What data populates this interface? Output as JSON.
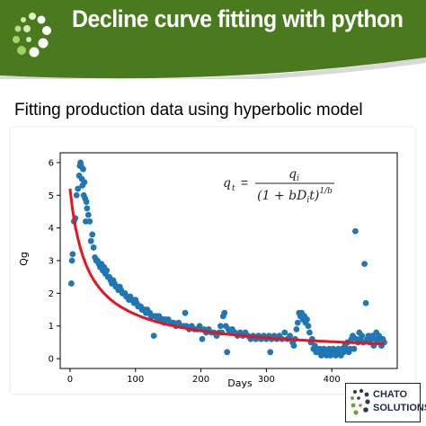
{
  "header": {
    "title": "Decline curve fitting with python",
    "bg_color": "#4a7a1e",
    "logo_icon": "dot-spiral-logo-icon"
  },
  "subtitle": "Fitting production data using hyperbolic model",
  "logo": {
    "line1": "CHATO",
    "line2": "SOLUTIONS",
    "icon": "dot-spiral-logo-icon"
  },
  "chart_data": {
    "type": "scatter",
    "title": "",
    "xlabel": "Days",
    "ylabel": "Qg",
    "xlim": [
      -15,
      500
    ],
    "ylim": [
      -0.3,
      6.3
    ],
    "xticks": [
      0,
      100,
      200,
      300,
      400
    ],
    "yticks": [
      0,
      1,
      2,
      3,
      4,
      5,
      6
    ],
    "grid": false,
    "legend": "none",
    "annotation": "q_t = q_i / (1 + bD_i t)^(1/b)",
    "series": [
      {
        "type": "scatter",
        "color": "#1f77b4",
        "points": [
          [
            2,
            2.3
          ],
          [
            3,
            3.0
          ],
          [
            4,
            3.2
          ],
          [
            6,
            4.2
          ],
          [
            8,
            4.3
          ],
          [
            10,
            5.0
          ],
          [
            12,
            5.2
          ],
          [
            14,
            5.6
          ],
          [
            15,
            5.9
          ],
          [
            16,
            6.0
          ],
          [
            17,
            5.9
          ],
          [
            18,
            5.5
          ],
          [
            19,
            5.3
          ],
          [
            20,
            5.8
          ],
          [
            21,
            5.0
          ],
          [
            22,
            5.4
          ],
          [
            23,
            4.9
          ],
          [
            24,
            4.2
          ],
          [
            25,
            4.8
          ],
          [
            26,
            4.6
          ],
          [
            28,
            4.4
          ],
          [
            30,
            4.2
          ],
          [
            32,
            3.6
          ],
          [
            34,
            3.8
          ],
          [
            36,
            3.4
          ],
          [
            38,
            3.1
          ],
          [
            40,
            3.0
          ],
          [
            42,
            3.0
          ],
          [
            44,
            2.9
          ],
          [
            46,
            2.8
          ],
          [
            48,
            2.9
          ],
          [
            50,
            2.7
          ],
          [
            52,
            2.8
          ],
          [
            54,
            2.6
          ],
          [
            56,
            2.7
          ],
          [
            58,
            2.5
          ],
          [
            60,
            2.5
          ],
          [
            62,
            2.4
          ],
          [
            64,
            2.3
          ],
          [
            66,
            2.4
          ],
          [
            68,
            2.3
          ],
          [
            70,
            2.2
          ],
          [
            72,
            2.2
          ],
          [
            74,
            2.1
          ],
          [
            76,
            2.2
          ],
          [
            78,
            2.1
          ],
          [
            80,
            2.0
          ],
          [
            82,
            2.0
          ],
          [
            84,
            2.0
          ],
          [
            86,
            1.9
          ],
          [
            88,
            1.9
          ],
          [
            90,
            1.8
          ],
          [
            92,
            1.9
          ],
          [
            94,
            1.8
          ],
          [
            96,
            1.8
          ],
          [
            98,
            1.7
          ],
          [
            100,
            1.8
          ],
          [
            102,
            1.7
          ],
          [
            104,
            1.6
          ],
          [
            106,
            1.6
          ],
          [
            108,
            1.6
          ],
          [
            110,
            1.5
          ],
          [
            112,
            1.5
          ],
          [
            114,
            1.5
          ],
          [
            116,
            1.4
          ],
          [
            118,
            1.5
          ],
          [
            120,
            1.4
          ],
          [
            122,
            1.4
          ],
          [
            124,
            1.3
          ],
          [
            126,
            1.3
          ],
          [
            128,
            0.7
          ],
          [
            130,
            1.3
          ],
          [
            132,
            1.3
          ],
          [
            134,
            1.2
          ],
          [
            136,
            1.3
          ],
          [
            138,
            1.2
          ],
          [
            140,
            1.2
          ],
          [
            142,
            1.2
          ],
          [
            144,
            1.1
          ],
          [
            146,
            1.2
          ],
          [
            150,
            1.2
          ],
          [
            154,
            1.1
          ],
          [
            158,
            1.1
          ],
          [
            162,
            1.0
          ],
          [
            166,
            1.1
          ],
          [
            170,
            1.0
          ],
          [
            174,
            1.0
          ],
          [
            176,
            1.4
          ],
          [
            178,
            1.0
          ],
          [
            182,
            0.9
          ],
          [
            186,
            1.0
          ],
          [
            190,
            0.9
          ],
          [
            194,
            0.9
          ],
          [
            198,
            1.0
          ],
          [
            200,
            0.9
          ],
          [
            202,
            0.6
          ],
          [
            205,
            0.9
          ],
          [
            208,
            0.8
          ],
          [
            212,
            0.9
          ],
          [
            216,
            0.8
          ],
          [
            220,
            0.8
          ],
          [
            224,
            0.7
          ],
          [
            228,
            0.8
          ],
          [
            230,
            1.0
          ],
          [
            232,
            0.8
          ],
          [
            234,
            1.3
          ],
          [
            236,
            1.4
          ],
          [
            238,
            1.0
          ],
          [
            240,
            0.2
          ],
          [
            242,
            0.9
          ],
          [
            244,
            0.8
          ],
          [
            248,
            0.9
          ],
          [
            252,
            0.8
          ],
          [
            256,
            0.7
          ],
          [
            260,
            0.8
          ],
          [
            264,
            0.7
          ],
          [
            268,
            0.8
          ],
          [
            272,
            0.7
          ],
          [
            276,
            0.6
          ],
          [
            280,
            0.7
          ],
          [
            284,
            0.6
          ],
          [
            288,
            0.7
          ],
          [
            292,
            0.6
          ],
          [
            296,
            0.7
          ],
          [
            300,
            0.6
          ],
          [
            304,
            0.7
          ],
          [
            306,
            0.2
          ],
          [
            308,
            0.6
          ],
          [
            312,
            0.7
          ],
          [
            316,
            0.6
          ],
          [
            320,
            0.7
          ],
          [
            324,
            0.6
          ],
          [
            328,
            0.8
          ],
          [
            332,
            0.6
          ],
          [
            336,
            0.7
          ],
          [
            340,
            0.5
          ],
          [
            342,
            0.4
          ],
          [
            344,
            0.6
          ],
          [
            346,
            0.9
          ],
          [
            348,
            1.1
          ],
          [
            350,
            1.4
          ],
          [
            352,
            1.3
          ],
          [
            354,
            1.4
          ],
          [
            356,
            1.2
          ],
          [
            358,
            1.3
          ],
          [
            360,
            1.1
          ],
          [
            362,
            1.2
          ],
          [
            364,
            1.0
          ],
          [
            366,
            0.8
          ],
          [
            368,
            0.5
          ],
          [
            370,
            0.6
          ],
          [
            372,
            0.3
          ],
          [
            374,
            0.4
          ],
          [
            376,
            0.2
          ],
          [
            378,
            0.3
          ],
          [
            380,
            0.2
          ],
          [
            382,
            0.3
          ],
          [
            384,
            0.1
          ],
          [
            386,
            0.2
          ],
          [
            388,
            0.3
          ],
          [
            390,
            0.2
          ],
          [
            392,
            0.1
          ],
          [
            394,
            0.2
          ],
          [
            396,
            0.3
          ],
          [
            398,
            0.1
          ],
          [
            400,
            0.2
          ],
          [
            402,
            0.3
          ],
          [
            404,
            0.2
          ],
          [
            406,
            0.1
          ],
          [
            408,
            0.2
          ],
          [
            410,
            0.3
          ],
          [
            412,
            0.2
          ],
          [
            414,
            0.1
          ],
          [
            416,
            0.3
          ],
          [
            418,
            0.2
          ],
          [
            420,
            0.4
          ],
          [
            422,
            0.3
          ],
          [
            424,
            0.5
          ],
          [
            426,
            0.2
          ],
          [
            428,
            0.3
          ],
          [
            430,
            0.6
          ],
          [
            432,
            0.7
          ],
          [
            434,
            0.3
          ],
          [
            436,
            3.9
          ],
          [
            438,
            0.6
          ],
          [
            440,
            0.5
          ],
          [
            442,
            0.8
          ],
          [
            444,
            0.6
          ],
          [
            446,
            0.7
          ],
          [
            448,
            0.5
          ],
          [
            450,
            2.9
          ],
          [
            452,
            1.7
          ],
          [
            454,
            0.6
          ],
          [
            456,
            0.7
          ],
          [
            458,
            0.5
          ],
          [
            460,
            0.6
          ],
          [
            462,
            0.7
          ],
          [
            464,
            0.4
          ],
          [
            466,
            0.6
          ],
          [
            468,
            0.8
          ],
          [
            470,
            0.5
          ],
          [
            472,
            0.7
          ],
          [
            474,
            0.6
          ],
          [
            476,
            0.4
          ],
          [
            478,
            0.6
          ],
          [
            480,
            0.5
          ]
        ]
      },
      {
        "type": "line",
        "color": "#e8141b",
        "model": {
          "qi": 5.2,
          "Di": 0.0365,
          "b": 1.3,
          "x_start": 0,
          "x_end": 480
        }
      }
    ]
  }
}
